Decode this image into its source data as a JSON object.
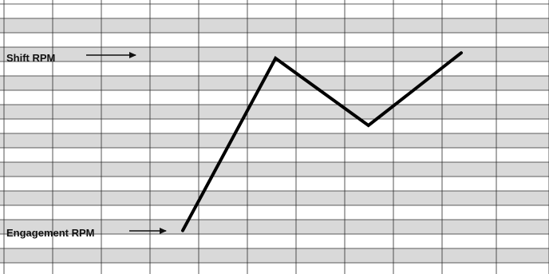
{
  "chart_data": {
    "type": "line",
    "title": "",
    "xlabel": "",
    "ylabel": "",
    "grid": true,
    "series": [
      {
        "x": [
          0,
          1,
          2,
          3
        ],
        "values": [
          0.05,
          1.0,
          0.63,
          1.03
        ]
      }
    ],
    "annotations": [
      {
        "text": "Shift RPM",
        "arrow": "right"
      },
      {
        "text": "Engagement RPM",
        "arrow": "right"
      }
    ],
    "colors": {
      "line": "#000000",
      "grid": "#2b2b2b",
      "band": "#d9d9d9"
    }
  }
}
